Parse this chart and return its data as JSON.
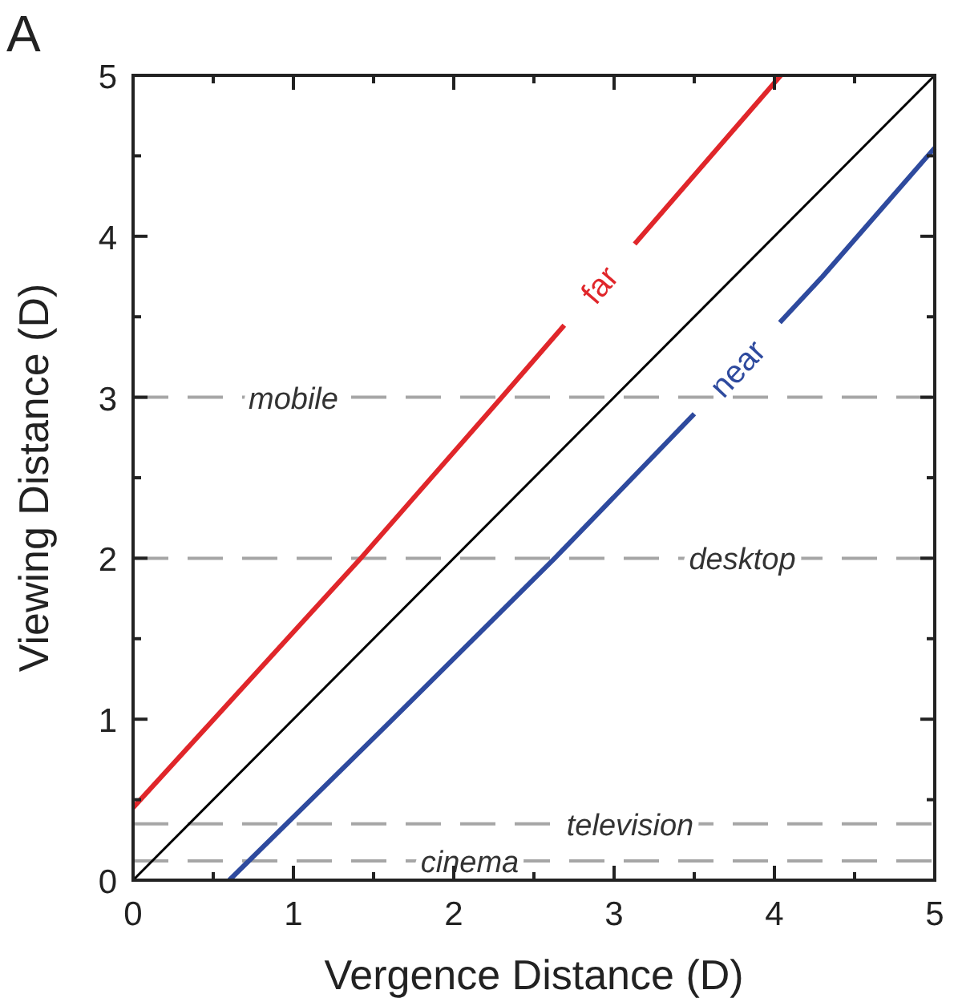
{
  "chart_data": {
    "type": "line",
    "title": "A",
    "xlabel": "Vergence Distance (D)",
    "ylabel": "Viewing Distance (D)",
    "xlim": [
      0,
      5
    ],
    "ylim": [
      0,
      5
    ],
    "xticks": [
      0,
      {
        "value": 0.5,
        "label": null
      },
      1,
      {
        "value": 1.5,
        "label": null
      },
      2,
      {
        "value": 2.5,
        "label": null
      },
      3,
      {
        "value": 3.5,
        "label": null
      },
      4,
      {
        "value": 4.5,
        "label": null
      },
      5
    ],
    "yticks": [
      0,
      {
        "value": 0.5,
        "label": null
      },
      1,
      {
        "value": 1.5,
        "label": null
      },
      2,
      {
        "value": 2.5,
        "label": null
      },
      3,
      {
        "value": 3.5,
        "label": null
      },
      4,
      {
        "value": 4.5,
        "label": null
      },
      5
    ],
    "grid": false,
    "legend": false,
    "marker": "none",
    "series": [
      {
        "name": "far",
        "color": "#e0262a",
        "x": [
          0,
          1.42,
          2.3,
          4.04
        ],
        "values": [
          0.45,
          2,
          3,
          5
        ]
      },
      {
        "color": "#000000",
        "x": [
          0,
          5
        ],
        "values": [
          0,
          5
        ]
      },
      {
        "name": "near",
        "color": "#2e4a9e",
        "x": [
          0.6,
          1.62,
          2.63,
          3.6,
          4.3,
          5
        ],
        "values": [
          0,
          1,
          2,
          3,
          3.75,
          4.55
        ]
      }
    ],
    "ref_lines": [
      {
        "axis": "y",
        "value": 3,
        "label": "mobile",
        "color": "#a6a6a6",
        "line_style": "dashed"
      },
      {
        "axis": "y",
        "value": 2,
        "label": "desktop",
        "color": "#a6a6a6",
        "line_style": "dashed"
      },
      {
        "axis": "y",
        "value": 0.35,
        "label": "television",
        "color": "#a6a6a6",
        "line_style": "dashed"
      },
      {
        "axis": "y",
        "value": 0.12,
        "label": "cinema",
        "color": "#a6a6a6",
        "line_style": "dashed"
      }
    ]
  }
}
